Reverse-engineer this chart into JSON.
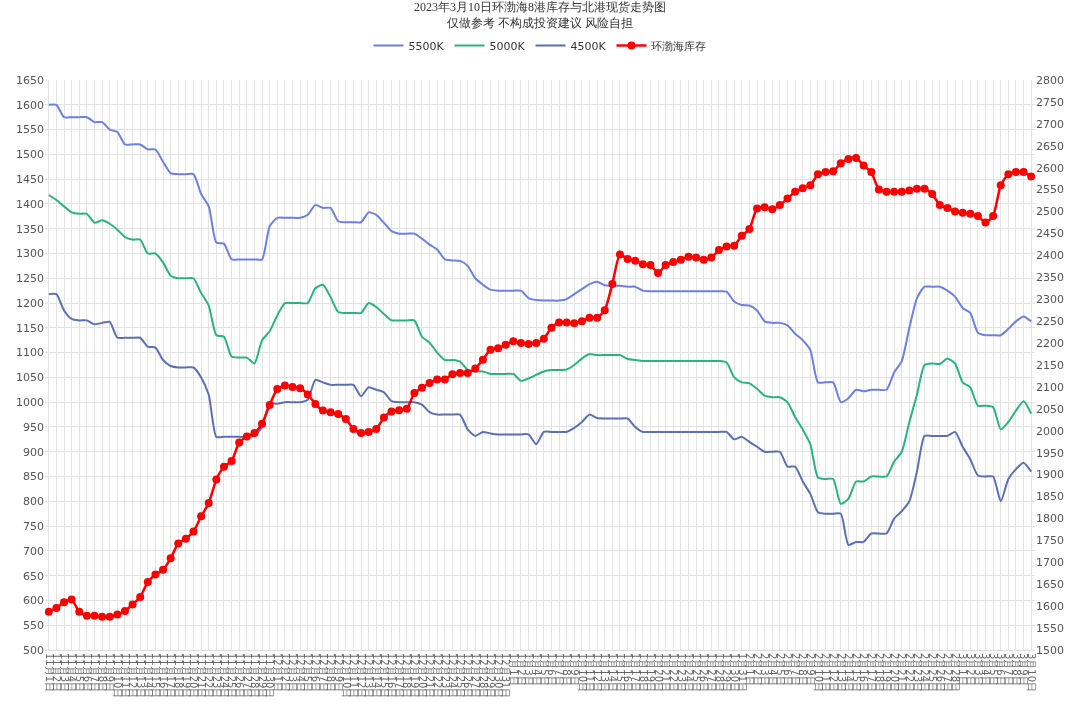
{
  "chart_data": {
    "type": "line",
    "title": "2023年3月10日环渤海8港库存与北港现货走势图",
    "subtitle": "仅做参考 不构成投资建议 风险自担",
    "categories": [
      "11月1日",
      "11月2日",
      "11月3日",
      "11月4日",
      "11月5日",
      "11月6日",
      "11月7日",
      "11月8日",
      "11月9日",
      "11月10日",
      "11月11日",
      "11月12日",
      "11月13日",
      "11月14日",
      "11月15日",
      "11月16日",
      "11月17日",
      "11月18日",
      "11月19日",
      "11月20日",
      "11月21日",
      "11月22日",
      "11月23日",
      "11月24日",
      "11月25日",
      "11月26日",
      "11月27日",
      "11月28日",
      "11月29日",
      "11月30日",
      "12月1日",
      "12月2日",
      "12月3日",
      "12月4日",
      "12月5日",
      "12月6日",
      "12月7日",
      "12月8日",
      "12月9日",
      "12月10日",
      "12月11日",
      "12月12日",
      "12月13日",
      "12月14日",
      "12月15日",
      "12月16日",
      "12月17日",
      "12月18日",
      "12月19日",
      "12月20日",
      "12月21日",
      "12月22日",
      "12月23日",
      "12月24日",
      "12月25日",
      "12月26日",
      "12月27日",
      "12月28日",
      "12月29日",
      "12月30日",
      "12月31日",
      "1月1日",
      "1月2日",
      "1月3日",
      "1月4日",
      "1月5日",
      "1月6日",
      "1月7日",
      "1月8日",
      "1月9日",
      "1月10日",
      "1月11日",
      "1月12日",
      "1月13日",
      "1月14日",
      "1月15日",
      "1月16日",
      "1月17日",
      "1月18日",
      "1月19日",
      "1月20日",
      "1月21日",
      "1月22日",
      "1月23日",
      "1月24日",
      "1月25日",
      "1月26日",
      "1月27日",
      "1月28日",
      "1月29日",
      "1月30日",
      "1月31日",
      "2月1日",
      "2月2日",
      "2月3日",
      "2月4日",
      "2月5日",
      "2月6日",
      "2月7日",
      "2月8日",
      "2月9日",
      "2月10日",
      "2月11日",
      "2月12日",
      "2月13日",
      "2月14日",
      "2月15日",
      "2月16日",
      "2月17日",
      "2月18日",
      "2月19日",
      "2月20日",
      "2月21日",
      "2月22日",
      "2月23日",
      "2月24日",
      "2月25日",
      "2月26日",
      "2月27日",
      "2月28日",
      "3月1日",
      "3月2日",
      "3月3日",
      "3月4日",
      "3月5日",
      "3月6日",
      "3月7日",
      "3月8日",
      "3月9日",
      "3月10日"
    ],
    "series": [
      {
        "name": "5500K",
        "color": "#6b7fe6",
        "values": [
          1600,
          1600,
          1575,
          1575,
          1575,
          1575,
          1565,
          1565,
          1550,
          1545,
          1520,
          1520,
          1520,
          1510,
          1510,
          1485,
          1462,
          1460,
          1460,
          1460,
          1420,
          1395,
          1322,
          1320,
          1288,
          1288,
          1288,
          1288,
          1288,
          1355,
          1372,
          1372,
          1372,
          1372,
          1378,
          1398,
          1392,
          1392,
          1365,
          1363,
          1363,
          1363,
          1383,
          1378,
          1362,
          1345,
          1340,
          1340,
          1340,
          1330,
          1318,
          1308,
          1288,
          1286,
          1285,
          1275,
          1250,
          1237,
          1227,
          1225,
          1225,
          1225,
          1225,
          1210,
          1206,
          1205,
          1205,
          1205,
          1208,
          1218,
          1228,
          1238,
          1243,
          1236,
          1235,
          1235,
          1233,
          1233,
          1225,
          1224,
          1224,
          1224,
          1224,
          1224,
          1224,
          1224,
          1224,
          1224,
          1224,
          1223,
          1203,
          1196,
          1195,
          1185,
          1163,
          1160,
          1160,
          1155,
          1138,
          1125,
          1105,
          1040,
          1040,
          1040,
          1000,
          1008,
          1025,
          1022,
          1025,
          1025,
          1025,
          1060,
          1083,
          1150,
          1210,
          1233,
          1233,
          1233,
          1225,
          1213,
          1190,
          1180,
          1140,
          1135,
          1135,
          1135,
          1148,
          1163,
          1173,
          1163
        ]
      },
      {
        "name": "5000K",
        "color": "#26b57f",
        "values": [
          1418,
          1408,
          1395,
          1383,
          1380,
          1380,
          1362,
          1367,
          1360,
          1348,
          1333,
          1328,
          1328,
          1300,
          1300,
          1282,
          1255,
          1250,
          1250,
          1250,
          1220,
          1195,
          1135,
          1132,
          1092,
          1090,
          1090,
          1078,
          1125,
          1143,
          1175,
          1200,
          1200,
          1200,
          1200,
          1230,
          1237,
          1212,
          1182,
          1180,
          1180,
          1180,
          1200,
          1192,
          1178,
          1165,
          1165,
          1165,
          1165,
          1132,
          1120,
          1100,
          1085,
          1085,
          1082,
          1065,
          1062,
          1062,
          1057,
          1057,
          1057,
          1057,
          1043,
          1048,
          1055,
          1062,
          1065,
          1065,
          1066,
          1075,
          1088,
          1097,
          1095,
          1095,
          1095,
          1095,
          1087,
          1085,
          1083,
          1083,
          1083,
          1083,
          1083,
          1083,
          1083,
          1083,
          1083,
          1083,
          1083,
          1080,
          1050,
          1040,
          1038,
          1027,
          1013,
          1010,
          1010,
          1000,
          970,
          945,
          915,
          848,
          845,
          845,
          795,
          805,
          840,
          840,
          850,
          850,
          850,
          880,
          900,
          960,
          1015,
          1075,
          1078,
          1077,
          1088,
          1078,
          1040,
          1030,
          993,
          993,
          990,
          945,
          960,
          983,
          1002,
          977
        ]
      },
      {
        "name": "4500K",
        "color": "#5b6fb8",
        "values": [
          1218,
          1218,
          1185,
          1168,
          1165,
          1165,
          1157,
          1160,
          1162,
          1130,
          1130,
          1130,
          1130,
          1112,
          1110,
          1085,
          1073,
          1070,
          1070,
          1070,
          1050,
          1015,
          930,
          930,
          930,
          930,
          930,
          932,
          950,
          997,
          997,
          1000,
          1000,
          1000,
          1005,
          1045,
          1040,
          1035,
          1035,
          1035,
          1035,
          1012,
          1030,
          1025,
          1020,
          1002,
          1000,
          1000,
          1000,
          995,
          980,
          975,
          975,
          975,
          975,
          945,
          932,
          940,
          937,
          935,
          935,
          935,
          935,
          935,
          915,
          940,
          940,
          940,
          940,
          948,
          960,
          975,
          968,
          967,
          967,
          967,
          967,
          950,
          940,
          940,
          940,
          940,
          940,
          940,
          940,
          940,
          940,
          940,
          940,
          940,
          925,
          930,
          920,
          910,
          900,
          900,
          900,
          870,
          870,
          840,
          815,
          778,
          775,
          775,
          775,
          712,
          718,
          718,
          735,
          735,
          735,
          765,
          780,
          800,
          860,
          932,
          932,
          932,
          932,
          940,
          910,
          885,
          852,
          850,
          850,
          800,
          845,
          865,
          878,
          860
        ]
      },
      {
        "name": "环渤海库存",
        "color": "#ff0000",
        "axis": "y2",
        "marker": "circle",
        "values": [
          1587,
          1596,
          1609,
          1615,
          1587,
          1578,
          1578,
          1576,
          1576,
          1581,
          1589,
          1604,
          1621,
          1655,
          1672,
          1683,
          1709,
          1743,
          1754,
          1770,
          1805,
          1835,
          1889,
          1918,
          1931,
          1973,
          1987,
          1995,
          2016,
          2059,
          2095,
          2103,
          2100,
          2097,
          2083,
          2061,
          2046,
          2042,
          2038,
          2027,
          2004,
          1995,
          1997,
          2004,
          2030,
          2044,
          2047,
          2050,
          2086,
          2098,
          2109,
          2117,
          2117,
          2129,
          2132,
          2132,
          2142,
          2162,
          2185,
          2188,
          2196,
          2204,
          2200,
          2198,
          2200,
          2210,
          2235,
          2247,
          2247,
          2245,
          2250,
          2258,
          2258,
          2275,
          2335,
          2402,
          2392,
          2388,
          2380,
          2378,
          2360,
          2378,
          2385,
          2390,
          2397,
          2395,
          2390,
          2395,
          2412,
          2420,
          2422,
          2445,
          2460,
          2507,
          2510,
          2505,
          2515,
          2530,
          2545,
          2553,
          2560,
          2585,
          2590,
          2592,
          2610,
          2620,
          2622,
          2605,
          2590,
          2550,
          2545,
          2545,
          2545,
          2548,
          2552,
          2552,
          2540,
          2515,
          2508,
          2500,
          2497,
          2495,
          2490,
          2475,
          2490,
          2560,
          2585,
          2590,
          2590,
          2580
        ]
      }
    ],
    "ylim": [
      500,
      1650
    ],
    "yticks": [
      500,
      550,
      600,
      650,
      700,
      750,
      800,
      850,
      900,
      950,
      1000,
      1050,
      1100,
      1150,
      1200,
      1250,
      1300,
      1350,
      1400,
      1450,
      1500,
      1550,
      1600,
      1650
    ],
    "y2lim": [
      1500,
      2800
    ],
    "y2ticks": [
      1500,
      1550,
      1600,
      1650,
      1700,
      1750,
      1800,
      1850,
      1900,
      1950,
      2000,
      2050,
      2100,
      2150,
      2200,
      2250,
      2300,
      2350,
      2400,
      2450,
      2500,
      2550,
      2600,
      2650,
      2700,
      2750,
      2800
    ],
    "grid": true,
    "legend": "top"
  }
}
